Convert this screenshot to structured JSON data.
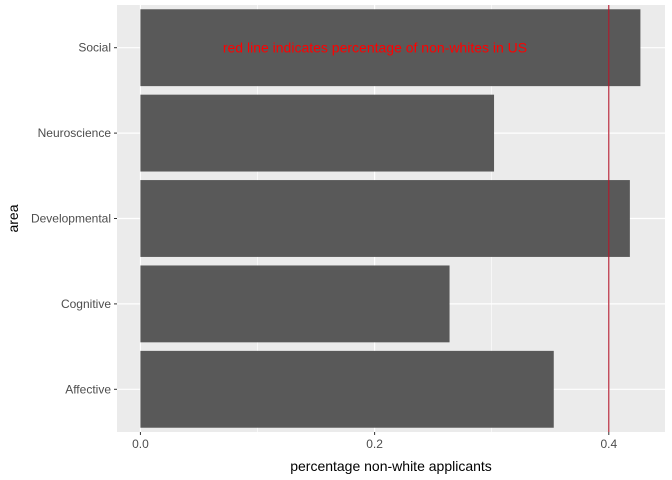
{
  "chart_data": {
    "type": "bar",
    "orientation": "horizontal",
    "categories": [
      "Affective",
      "Cognitive",
      "Developmental",
      "Neuroscience",
      "Social"
    ],
    "values": [
      0.353,
      0.264,
      0.418,
      0.302,
      0.427
    ],
    "xlabel": "percentage non-white applicants",
    "ylabel": "area",
    "xlim": [
      -0.02,
      0.448
    ],
    "xticks": [
      0.0,
      0.2,
      0.4
    ],
    "xtick_labels": [
      "0.0",
      "0.2",
      "0.4"
    ],
    "reference_line": {
      "x": 0.4,
      "color": "#b2182b"
    },
    "annotation": {
      "text": "red line indicates percentage of non-whites in US",
      "color": "#ff0000"
    },
    "grid": true,
    "colors": {
      "bar": "#595959",
      "panel": "#ebebeb",
      "grid": "#ffffff"
    }
  }
}
